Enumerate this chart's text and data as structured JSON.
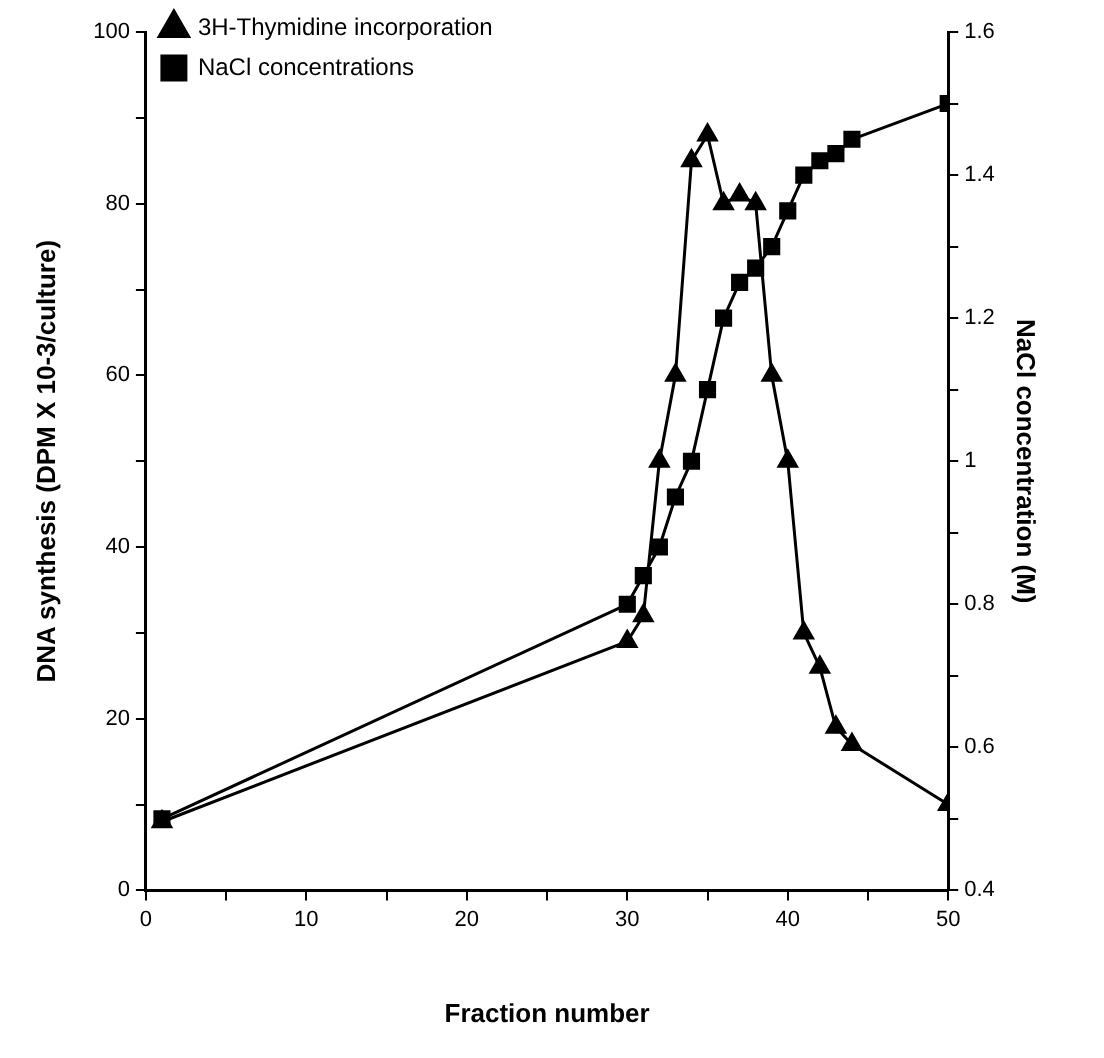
{
  "chart_data": {
    "type": "line",
    "xlabel": "Fraction number",
    "ylabel": "DNA synthesis (DPM X 10-3/culture)",
    "y2label": "NaCl concentration (M)",
    "xlim": [
      0,
      50
    ],
    "xticks": [
      0,
      {
        "value": 5,
        "label": null
      },
      10,
      {
        "value": 15,
        "label": null
      },
      20,
      {
        "value": 25,
        "label": null
      },
      30,
      {
        "value": 35,
        "label": null
      },
      40,
      {
        "value": 45,
        "label": null
      },
      50
    ],
    "ylim": [
      0,
      100
    ],
    "yticks": [
      0,
      {
        "value": 10,
        "label": null
      },
      20,
      {
        "value": 30,
        "label": null
      },
      40,
      {
        "value": 50,
        "label": null
      },
      60,
      {
        "value": 70,
        "label": null
      },
      80,
      {
        "value": 90,
        "label": null
      },
      100
    ],
    "y2lim": [
      0.4,
      1.6
    ],
    "y2ticks": [
      0.4,
      {
        "value": 0.5,
        "label": null
      },
      0.6,
      {
        "value": 0.7,
        "label": null
      },
      0.8,
      {
        "value": 0.9,
        "label": null
      },
      1.0,
      {
        "value": 1.1,
        "label": null
      },
      1.2,
      {
        "value": 1.3,
        "label": null
      },
      1.4,
      {
        "value": 1.5,
        "label": null
      },
      1.6
    ],
    "legend": "top left",
    "grid": false,
    "line_style": "solid",
    "series": [
      {
        "name": "3H-Thymidine incorporation",
        "color": "#000000",
        "marker": "triangle",
        "x": [
          1,
          30,
          31,
          32,
          33,
          34,
          35,
          36,
          37,
          38,
          39,
          40,
          41,
          42,
          43,
          44,
          50
        ],
        "values": [
          8,
          29,
          32,
          50,
          60,
          85,
          88,
          80,
          81,
          80,
          60,
          50,
          30,
          26,
          19,
          17,
          10
        ]
      },
      {
        "name": "NaCl concentrations",
        "color": "#000000",
        "marker": "square",
        "axis": "y2",
        "x": [
          1,
          30,
          31,
          32,
          33,
          34,
          35,
          36,
          37,
          38,
          39,
          40,
          41,
          42,
          43,
          44,
          50
        ],
        "values": [
          0.5,
          0.8,
          0.84,
          0.88,
          0.95,
          1.0,
          1.1,
          1.2,
          1.25,
          1.27,
          1.3,
          1.35,
          1.4,
          1.42,
          1.43,
          1.45,
          1.5
        ]
      }
    ]
  }
}
